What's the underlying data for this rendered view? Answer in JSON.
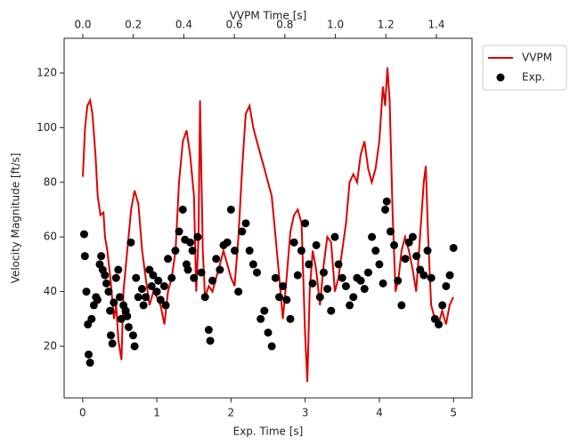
{
  "chart_data": {
    "type": "line",
    "xlabel": "Exp. Time [s]",
    "x2label": "VVPM Time [s]",
    "ylabel": "Velocity Magnitude [ft/s]",
    "xlim": [
      -0.25,
      5.25
    ],
    "xticks": [
      0,
      1,
      2,
      3,
      4,
      5
    ],
    "x2lim": [
      -0.074,
      1.541
    ],
    "x2ticks": [
      {
        "value": 0,
        "label": "0.0"
      },
      0.2,
      0.4,
      0.6,
      0.8,
      {
        "value": 1,
        "label": "1.0"
      },
      1.2,
      1.4
    ],
    "ylim": [
      1.1,
      132.7
    ],
    "yticks": [
      20,
      40,
      60,
      80,
      100,
      120
    ],
    "legend": "outside-upper-right",
    "series": [
      {
        "name": "VVPM",
        "type": "line",
        "axis": "x2",
        "color": "#e00000",
        "x": [
          0,
          0.009,
          0.018,
          0.029,
          0.038,
          0.05,
          0.059,
          0.07,
          0.082,
          0.088,
          0.097,
          0.109,
          0.123,
          0.132,
          0.141,
          0.153,
          0.161,
          0.176,
          0.191,
          0.205,
          0.22,
          0.235,
          0.249,
          0.264,
          0.279,
          0.293,
          0.308,
          0.323,
          0.337,
          0.352,
          0.367,
          0.381,
          0.396,
          0.411,
          0.425,
          0.44,
          0.449,
          0.458,
          0.464,
          0.475,
          0.484,
          0.499,
          0.513,
          0.528,
          0.543,
          0.557,
          0.572,
          0.587,
          0.601,
          0.616,
          0.631,
          0.645,
          0.66,
          0.675,
          0.689,
          0.704,
          0.719,
          0.733,
          0.748,
          0.763,
          0.778,
          0.792,
          0.807,
          0.822,
          0.836,
          0.851,
          0.866,
          0.88,
          0.889,
          0.898,
          0.91,
          0.924,
          0.939,
          0.954,
          0.968,
          0.983,
          0.998,
          1.012,
          1.027,
          1.042,
          1.056,
          1.071,
          1.086,
          1.1,
          1.115,
          1.13,
          1.144,
          1.159,
          1.174,
          1.188,
          1.197,
          1.206,
          1.215,
          1.226,
          1.238,
          1.25,
          1.262,
          1.276,
          1.291,
          1.306,
          1.32,
          1.335,
          1.35,
          1.358,
          1.367,
          1.379,
          1.394,
          1.408,
          1.423,
          1.438,
          1.452,
          1.467
        ],
        "values": [
          82,
          100,
          108,
          110,
          105,
          90,
          75,
          68,
          69,
          60,
          55,
          45,
          30,
          35,
          22,
          15,
          40,
          55,
          70,
          77,
          72,
          55,
          45,
          35,
          40,
          38,
          35,
          28,
          40,
          45,
          55,
          80,
          95,
          99,
          90,
          75,
          40,
          60,
          110,
          55,
          38,
          42,
          40,
          45,
          50,
          55,
          50,
          45,
          42,
          60,
          85,
          105,
          108,
          100,
          95,
          90,
          85,
          80,
          75,
          60,
          45,
          30,
          45,
          62,
          68,
          70,
          65,
          25,
          7,
          40,
          55,
          48,
          35,
          50,
          60,
          58,
          40,
          45,
          55,
          65,
          80,
          83,
          80,
          90,
          95,
          85,
          80,
          85,
          95,
          115,
          108,
          122,
          110,
          70,
          40,
          45,
          55,
          60,
          55,
          48,
          40,
          60,
          80,
          86,
          60,
          35,
          30,
          28,
          33,
          28,
          35,
          38
        ]
      },
      {
        "name": "Exp.",
        "type": "scatter",
        "color": "#000000",
        "x": [
          0.02,
          0.03,
          0.05,
          0.07,
          0.08,
          0.1,
          0.12,
          0.15,
          0.18,
          0.2,
          0.23,
          0.25,
          0.27,
          0.3,
          0.32,
          0.35,
          0.37,
          0.38,
          0.4,
          0.42,
          0.45,
          0.48,
          0.5,
          0.52,
          0.55,
          0.58,
          0.6,
          0.62,
          0.65,
          0.68,
          0.7,
          0.72,
          0.75,
          0.8,
          0.82,
          0.85,
          0.9,
          0.93,
          0.95,
          1.0,
          1.02,
          1.05,
          1.1,
          1.12,
          1.15,
          1.2,
          1.25,
          1.3,
          1.35,
          1.38,
          1.4,
          1.42,
          1.45,
          1.48,
          1.5,
          1.55,
          1.6,
          1.65,
          1.7,
          1.72,
          1.75,
          1.8,
          1.85,
          1.9,
          1.95,
          2.0,
          2.05,
          2.1,
          2.15,
          2.2,
          2.25,
          2.3,
          2.35,
          2.4,
          2.45,
          2.5,
          2.55,
          2.6,
          2.65,
          2.7,
          2.75,
          2.8,
          2.85,
          2.9,
          2.95,
          3.0,
          3.05,
          3.1,
          3.15,
          3.2,
          3.25,
          3.3,
          3.35,
          3.4,
          3.45,
          3.5,
          3.55,
          3.6,
          3.65,
          3.7,
          3.75,
          3.8,
          3.85,
          3.9,
          3.95,
          4.0,
          4.05,
          4.08,
          4.1,
          4.15,
          4.2,
          4.25,
          4.3,
          4.35,
          4.4,
          4.45,
          4.5,
          4.55,
          4.6,
          4.65,
          4.7,
          4.75,
          4.8,
          4.85,
          4.9,
          4.95,
          5.0
        ],
        "values": [
          61,
          53,
          40,
          28,
          17,
          14,
          30,
          35,
          38,
          37,
          50,
          53,
          48,
          46,
          43,
          40,
          33,
          24,
          21,
          36,
          45,
          48,
          38,
          30,
          35,
          33,
          31,
          27,
          58,
          24,
          20,
          45,
          38,
          41,
          35,
          38,
          48,
          42,
          46,
          40,
          44,
          37,
          42,
          35,
          52,
          45,
          55,
          62,
          70,
          59,
          50,
          48,
          58,
          55,
          45,
          60,
          47,
          38,
          26,
          22,
          44,
          52,
          48,
          57,
          58,
          70,
          55,
          40,
          62,
          65,
          55,
          50,
          47,
          30,
          33,
          25,
          20,
          45,
          38,
          42,
          37,
          30,
          58,
          46,
          55,
          65,
          50,
          43,
          57,
          38,
          47,
          41,
          33,
          60,
          50,
          45,
          42,
          35,
          38,
          45,
          44,
          41,
          47,
          60,
          55,
          50,
          43,
          70,
          73,
          62,
          57,
          44,
          35,
          52,
          58,
          60,
          53,
          48,
          46,
          55,
          45,
          30,
          28,
          35,
          42,
          46,
          56
        ]
      }
    ]
  }
}
